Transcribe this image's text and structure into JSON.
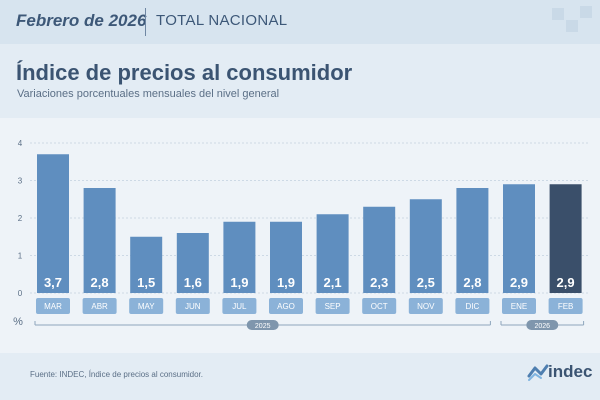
{
  "header": {
    "period": "Febrero de 2026",
    "scope": "TOTAL NACIONAL"
  },
  "title": "Índice de precios al consumidor",
  "subtitle": "Variaciones porcentuales mensuales del nivel general",
  "source": "Fuente: INDEC, Índice de precios al consumidor.",
  "logo": {
    "text": "indec"
  },
  "colors": {
    "bar": "#5f8ebf",
    "bar_highlight": "#3a4f6a",
    "tick_bg": "#8bb2d8"
  },
  "chart_data": {
    "type": "bar",
    "categories": [
      "MAR",
      "ABR",
      "MAY",
      "JUN",
      "JUL",
      "AGO",
      "SEP",
      "OCT",
      "NOV",
      "DIC",
      "ENE",
      "FEB"
    ],
    "values": [
      3.7,
      2.8,
      1.5,
      1.6,
      1.9,
      1.9,
      2.1,
      2.3,
      2.5,
      2.8,
      2.9,
      2.9
    ],
    "value_labels": [
      "3,7",
      "2,8",
      "1,5",
      "1,6",
      "1,9",
      "1,9",
      "2,1",
      "2,3",
      "2,5",
      "2,8",
      "2,9",
      "2,9"
    ],
    "ylim": [
      0,
      4
    ],
    "yticks": [
      "0",
      "1",
      "2",
      "3",
      "4"
    ],
    "ylabel": "%",
    "highlight_index": 11,
    "grid": true,
    "year_groups": [
      {
        "label": "2025",
        "start": 0,
        "end": 9
      },
      {
        "label": "2026",
        "start": 10,
        "end": 11
      }
    ]
  }
}
